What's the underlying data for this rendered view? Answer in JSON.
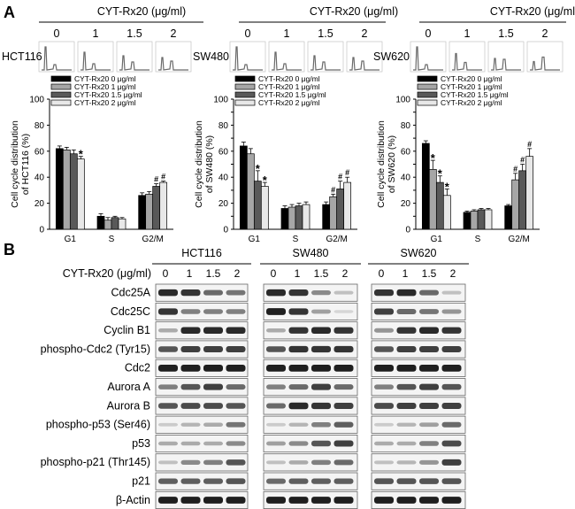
{
  "panel_a": {
    "label": "A",
    "treatment_label": "CYT-Rx20 (μg/ml)",
    "doses": [
      "0",
      "1",
      "1.5",
      "2"
    ]
  },
  "panel_b": {
    "label": "B",
    "treatment_label": "CYT-Rx20 (μg/ml)",
    "cell_lines": [
      "HCT116",
      "SW480",
      "SW620"
    ],
    "doses": [
      "0",
      "1",
      "1.5",
      "2"
    ],
    "proteins": [
      "Cdc25A",
      "Cdc25C",
      "Cyclin B1",
      "phospho-Cdc2 (Tyr15)",
      "Cdc2",
      "Aurora A",
      "Aurora B",
      "phospho-p53 (Ser46)",
      "p53",
      "phospho-p21 (Thr145)",
      "p21",
      "β-Actin"
    ]
  },
  "colors": {
    "bar_0": "#000000",
    "bar_1": "#a6a6a6",
    "bar_15": "#595959",
    "bar_2": "#e8e8e8"
  },
  "chart_data": [
    {
      "type": "bar",
      "cell_line": "HCT116",
      "title": "",
      "xlabel": "",
      "ylabel": "Cell cycle distribution of HCT116 (%)",
      "ylim": [
        0,
        100
      ],
      "yticks": [
        0,
        20,
        40,
        60,
        80,
        100
      ],
      "categories": [
        "G1",
        "S",
        "G2/M"
      ],
      "series": [
        {
          "name": "CYT-Rx20 0 μg/ml",
          "values": [
            62,
            10,
            26
          ],
          "errors": [
            2,
            2,
            2
          ]
        },
        {
          "name": "CYT-Rx20 1 μg/ml",
          "values": [
            61,
            7,
            27
          ],
          "errors": [
            2,
            2,
            2
          ]
        },
        {
          "name": "CYT-Rx20 1.5 μg/ml",
          "values": [
            58,
            9,
            33
          ],
          "errors": [
            3,
            1,
            2
          ]
        },
        {
          "name": "CYT-Rx20 2 μg/ml",
          "values": [
            54,
            8,
            36
          ],
          "errors": [
            2,
            1,
            1
          ]
        }
      ],
      "annotations": [
        {
          "category": "G1",
          "series": 3,
          "text": "*"
        },
        {
          "category": "G2/M",
          "series": 2,
          "text": "#"
        },
        {
          "category": "G2/M",
          "series": 3,
          "text": "#"
        }
      ],
      "legend_position": "top-left",
      "histogram_row_label": "HCT116"
    },
    {
      "type": "bar",
      "cell_line": "SW480",
      "title": "",
      "xlabel": "",
      "ylabel": "Cell cycle distribution of SW480 (%)",
      "ylim": [
        0,
        100
      ],
      "yticks": [
        0,
        10,
        20,
        30,
        40,
        50,
        60,
        70,
        80,
        90,
        100
      ],
      "categories": [
        "G1",
        "S",
        "G2/M"
      ],
      "series": [
        {
          "name": "CYT-Rx20 0 μg/ml",
          "values": [
            64,
            16,
            19
          ],
          "errors": [
            3,
            2,
            2
          ]
        },
        {
          "name": "CYT-Rx20 1 μg/ml",
          "values": [
            58,
            17,
            25
          ],
          "errors": [
            4,
            2,
            2
          ]
        },
        {
          "name": "CYT-Rx20 1.5 μg/ml",
          "values": [
            37,
            18,
            31
          ],
          "errors": [
            8,
            2,
            6
          ]
        },
        {
          "name": "CYT-Rx20 2 μg/ml",
          "values": [
            33,
            19,
            36
          ],
          "errors": [
            3,
            2,
            4
          ]
        }
      ],
      "annotations": [
        {
          "category": "G1",
          "series": 2,
          "text": "*"
        },
        {
          "category": "G1",
          "series": 3,
          "text": "*"
        },
        {
          "category": "G2/M",
          "series": 1,
          "text": "#"
        },
        {
          "category": "G2/M",
          "series": 2,
          "text": "#"
        },
        {
          "category": "G2/M",
          "series": 3,
          "text": "#"
        }
      ],
      "legend_position": "top-left",
      "histogram_row_label": "SW480"
    },
    {
      "type": "bar",
      "cell_line": "SW620",
      "title": "",
      "xlabel": "",
      "ylabel": "Cell cycle distribution of SW620 (%)",
      "ylim": [
        0,
        100
      ],
      "yticks": [
        0,
        10,
        20,
        30,
        40,
        50,
        60,
        70,
        80,
        90,
        100
      ],
      "categories": [
        "G1",
        "S",
        "G2/M"
      ],
      "series": [
        {
          "name": "CYT-Rx20 0 μg/ml",
          "values": [
            66,
            13,
            18
          ],
          "errors": [
            2,
            1,
            1
          ]
        },
        {
          "name": "CYT-Rx20 1 μg/ml",
          "values": [
            46,
            14,
            38
          ],
          "errors": [
            7,
            1,
            5
          ]
        },
        {
          "name": "CYT-Rx20 1.5 μg/ml",
          "values": [
            36,
            15,
            45
          ],
          "errors": [
            5,
            1,
            5
          ]
        },
        {
          "name": "CYT-Rx20 2 μg/ml",
          "values": [
            26,
            15,
            56
          ],
          "errors": [
            5,
            1,
            6
          ]
        }
      ],
      "annotations": [
        {
          "category": "G1",
          "series": 1,
          "text": "*"
        },
        {
          "category": "G1",
          "series": 2,
          "text": "*"
        },
        {
          "category": "G1",
          "series": 3,
          "text": "*"
        },
        {
          "category": "G2/M",
          "series": 1,
          "text": "#"
        },
        {
          "category": "G2/M",
          "series": 2,
          "text": "#"
        },
        {
          "category": "G2/M",
          "series": 3,
          "text": "#"
        }
      ],
      "legend_position": "top-left",
      "histogram_row_label": "SW620"
    }
  ]
}
